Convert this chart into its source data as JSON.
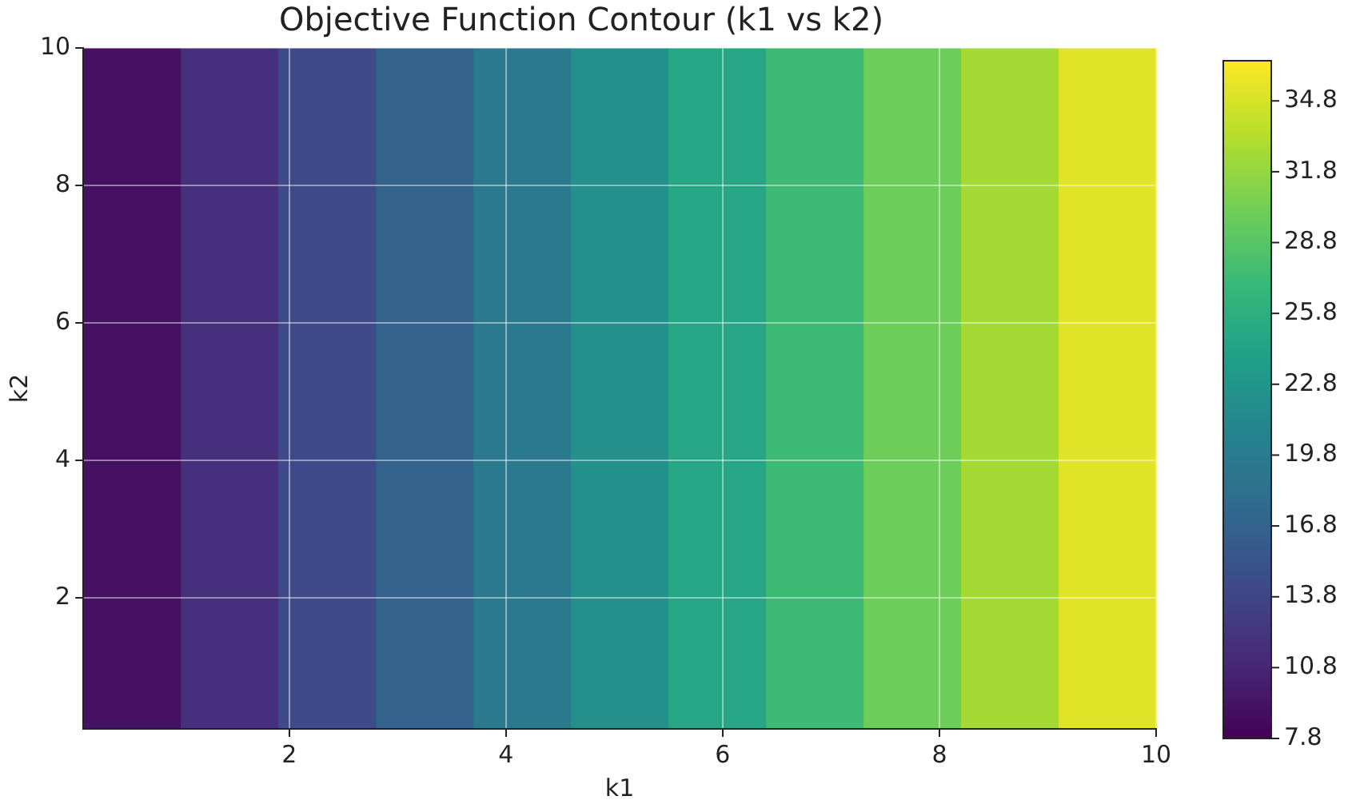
{
  "chart_data": {
    "type": "heatmap",
    "title": "Objective Function Contour (k1 vs k2)",
    "xlabel": "k1",
    "ylabel": "k2",
    "x": [
      0.55,
      1.45,
      2.35,
      3.25,
      4.15,
      5.05,
      5.95,
      6.85,
      7.75,
      8.65,
      9.55
    ],
    "cells": [
      [
        9.1,
        11.7,
        14.3,
        16.9,
        19.5,
        22.1,
        24.8,
        27.4,
        30.0,
        32.6,
        35.2
      ]
    ],
    "xlim": [
      0.1,
      10
    ],
    "ylim": [
      0.1,
      10
    ],
    "xticks": [
      2,
      4,
      6,
      8,
      10
    ],
    "yticks": [
      2,
      4,
      6,
      8,
      10
    ],
    "clim": [
      7.8,
      36.5
    ],
    "cticks": [
      7.8,
      10.8,
      13.8,
      16.8,
      19.8,
      22.8,
      25.8,
      28.8,
      31.8,
      34.8
    ],
    "grid": true
  }
}
